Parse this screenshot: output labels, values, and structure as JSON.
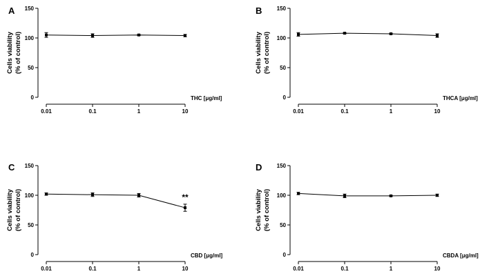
{
  "figure": {
    "background": "#ffffff",
    "line_color": "#000000"
  },
  "chart_data": [
    {
      "type": "line",
      "panel_label": "A",
      "title": "",
      "ylabel_line1": "Cells viability",
      "ylabel_line2": "(% of control)",
      "xlabel": "THC [μg/ml]",
      "x_scale": "log",
      "categories": [
        "0.01",
        "0.1",
        "1",
        "10"
      ],
      "x": [
        0.01,
        0.1,
        1,
        10
      ],
      "values": [
        105,
        104,
        105,
        104
      ],
      "errors": [
        4,
        3,
        1,
        2
      ],
      "ylim": [
        0,
        150
      ],
      "yticks": [
        0,
        50,
        100,
        150
      ],
      "annotations": []
    },
    {
      "type": "line",
      "panel_label": "B",
      "title": "",
      "ylabel_line1": "Cells viability",
      "ylabel_line2": "(% of control)",
      "xlabel": "THCA [μg/ml]",
      "x_scale": "log",
      "categories": [
        "0.01",
        "0.1",
        "1",
        "10"
      ],
      "x": [
        0.01,
        0.1,
        1,
        10
      ],
      "values": [
        106,
        108,
        107,
        104
      ],
      "errors": [
        3,
        1,
        1,
        3
      ],
      "ylim": [
        0,
        150
      ],
      "yticks": [
        0,
        50,
        100,
        150
      ],
      "annotations": []
    },
    {
      "type": "line",
      "panel_label": "C",
      "title": "",
      "ylabel_line1": "Cells viability",
      "ylabel_line2": "(% of control)",
      "xlabel": "CBD [μg/ml]",
      "x_scale": "log",
      "categories": [
        "0.01",
        "0.1",
        "1",
        "10"
      ],
      "x": [
        0.01,
        0.1,
        1,
        10
      ],
      "values": [
        102,
        101,
        100,
        79
      ],
      "errors": [
        2,
        3,
        3,
        6
      ],
      "ylim": [
        0,
        150
      ],
      "yticks": [
        0,
        50,
        100,
        150
      ],
      "annotations": [
        {
          "text": "**",
          "index": 3
        }
      ]
    },
    {
      "type": "line",
      "panel_label": "D",
      "title": "",
      "ylabel_line1": "Cells viability",
      "ylabel_line2": "(% of control)",
      "xlabel": "CBDA [μg/ml]",
      "x_scale": "log",
      "categories": [
        "0.01",
        "0.1",
        "1",
        "10"
      ],
      "x": [
        0.01,
        0.1,
        1,
        10
      ],
      "values": [
        103,
        99,
        99,
        100
      ],
      "errors": [
        2,
        3,
        1,
        2
      ],
      "ylim": [
        0,
        150
      ],
      "yticks": [
        0,
        50,
        100,
        150
      ],
      "annotations": []
    }
  ]
}
